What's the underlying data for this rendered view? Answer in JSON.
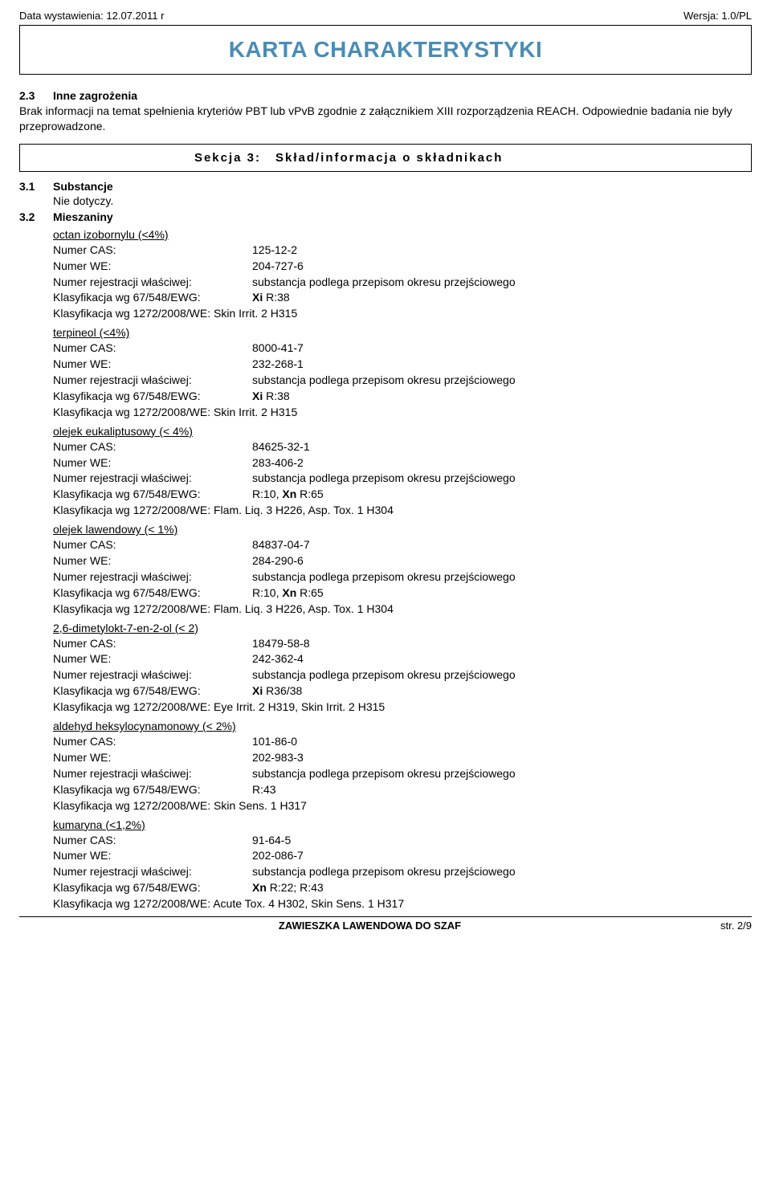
{
  "header": {
    "left": "Data wystawienia: 12.07.2011 r",
    "right": "Wersja: 1.0/PL"
  },
  "title": "KARTA CHARAKTERYSTYKI",
  "sec23": {
    "num": "2.3",
    "title": "Inne zagrożenia",
    "text": "Brak informacji na temat spełnienia kryteriów PBT lub vPvB zgodnie z załącznikiem XIII rozporządzenia REACH. Odpowiednie badania nie były przeprowadzone."
  },
  "section3_header": {
    "left": "Sekcja 3:",
    "right": "Skład/informacja o składnikach"
  },
  "sec31": {
    "num": "3.1",
    "title": "Substancje",
    "text": "Nie dotyczy."
  },
  "sec32": {
    "num": "3.2",
    "title": "Mieszaniny"
  },
  "labels": {
    "cas": "Numer CAS:",
    "we": "Numer WE:",
    "reg": "Numer rejestracji właściwej:",
    "k67": "Klasyfikacja wg 67/548/EWG:",
    "k1272": "Klasyfikacja wg 1272/2008/WE:"
  },
  "reg_val": "substancja podlega przepisom okresu przejściowego",
  "substances": [
    {
      "name": "octan izobornylu (<4%)",
      "cas": "125-12-2",
      "we": "204-727-6",
      "k67_pre": "Xi",
      "k67_post": " R:38",
      "k1272": "Skin Irrit. 2 H315"
    },
    {
      "name": "terpineol (<4%)",
      "cas": "8000-41-7",
      "we": "232-268-1",
      "k67_pre": "Xi",
      "k67_post": " R:38",
      "k1272": "Skin Irrit. 2 H315"
    },
    {
      "name": "olejek eukaliptusowy (< 4%)",
      "cas": "84625-32-1",
      "we": "283-406-2",
      "k67_pre": "",
      "k67_mid": "R:10, ",
      "k67_bold": "Xn",
      "k67_post": " R:65",
      "k1272": "Flam. Liq. 3 H226, Asp. Tox. 1 H304"
    },
    {
      "name": "olejek lawendowy (< 1%)",
      "cas": "84837-04-7",
      "we": "284-290-6",
      "k67_pre": "",
      "k67_mid": "R:10, ",
      "k67_bold": "Xn",
      "k67_post": " R:65",
      "k1272": "Flam. Liq. 3 H226, Asp. Tox. 1 H304"
    },
    {
      "name": "2,6-dimetylokt-7-en-2-ol (< 2)",
      "cas": "18479-58-8",
      "we": "242-362-4",
      "k67_pre": "Xi",
      "k67_post": " R36/38",
      "k1272": "Eye Irrit. 2 H319, Skin Irrit. 2 H315"
    },
    {
      "name": "aldehyd heksylocynamonowy (< 2%)",
      "cas": "101-86-0",
      "we": "202-983-3",
      "k67_pre": "",
      "k67_post": "R:43",
      "k1272": "Skin Sens. 1 H317"
    },
    {
      "name": "kumaryna (<1,2%)",
      "cas": "91-64-5",
      "we": "202-086-7",
      "k67_pre": "Xn",
      "k67_post": " R:22; R:43",
      "k1272": "Acute Tox. 4 H302, Skin Sens. 1 H317"
    }
  ],
  "footer": {
    "center": "ZAWIESZKA LAWENDOWA DO SZAF",
    "right": "str. 2/9"
  }
}
